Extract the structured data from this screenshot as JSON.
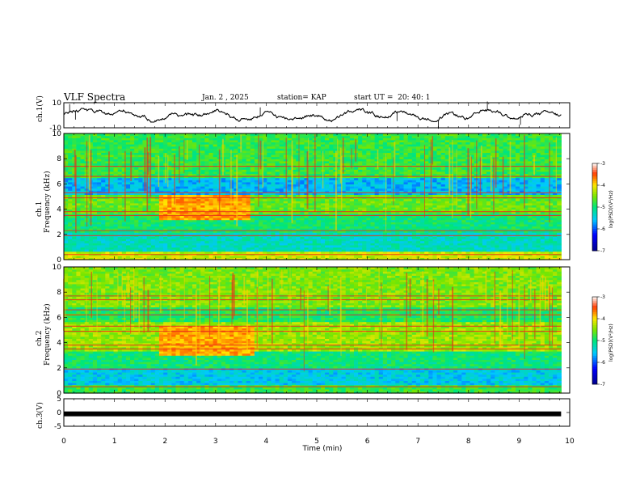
{
  "header": {
    "title": "VLF Spectra",
    "date": "Jan. 2 , 2025",
    "station": "station= KAP",
    "start": "start UT =  20: 40: 1"
  },
  "chart_data": [
    {
      "type": "line",
      "name": "ch1-time-series",
      "ylabel": "ch.1(V)",
      "ylim": [
        -10,
        10
      ],
      "ytick_labels": [
        "10",
        "-10"
      ],
      "x_range_min": [
        0,
        9.83
      ],
      "description_values": "broadband voltage trace fluctuating between about -5 and 5 V"
    },
    {
      "type": "heatmap",
      "name": "ch1-spectrogram",
      "ylabel": "Frequency (kHz)",
      "channel_label": "ch.1",
      "ylim": [
        0,
        10
      ],
      "ytick_labels": [
        "0",
        "2",
        "4",
        "6",
        "8",
        "10"
      ],
      "colorbar": {
        "label": "log(PSD)(V²/Hz)",
        "range": [
          -7,
          -3
        ],
        "tick_labels": [
          "-3",
          "-4",
          "-5",
          "-6",
          "-7"
        ]
      },
      "bands_khz": [
        {
          "from": 0,
          "to": 0.6,
          "level": -4.2
        },
        {
          "from": 0.6,
          "to": 2.2,
          "level": -5.3
        },
        {
          "from": 2.2,
          "to": 3.6,
          "level": -5.0
        },
        {
          "from": 3.6,
          "to": 5.2,
          "level": -4.6
        },
        {
          "from": 5.2,
          "to": 6.5,
          "level": -5.6
        },
        {
          "from": 6.5,
          "to": 10,
          "level": -4.8
        }
      ],
      "lines_khz": [
        0.4,
        1.9,
        2.3,
        3.5,
        3.8,
        4.9,
        5.3,
        6.6,
        7.4
      ],
      "enhancement": {
        "t_from_min": 1.9,
        "t_to_min": 3.7,
        "f_from_khz": 3.2,
        "f_to_khz": 5.2,
        "level": -3.8
      }
    },
    {
      "type": "heatmap",
      "name": "ch2-spectrogram",
      "ylabel": "Frequency (kHz)",
      "channel_label": "ch.2",
      "ylim": [
        0,
        10
      ],
      "ytick_labels": [
        "0",
        "2",
        "4",
        "6",
        "8",
        "10"
      ],
      "colorbar": {
        "label": "log(PSD)(V²/Hz)",
        "range": [
          -7,
          -3
        ],
        "tick_labels": [
          "-3",
          "-4",
          "-5",
          "-6",
          "-7"
        ]
      },
      "bands_khz": [
        {
          "from": 0,
          "to": 0.6,
          "level": -4.8
        },
        {
          "from": 0.6,
          "to": 2.0,
          "level": -5.5
        },
        {
          "from": 2.0,
          "to": 3.4,
          "level": -5.0
        },
        {
          "from": 3.4,
          "to": 5.6,
          "level": -4.4
        },
        {
          "from": 5.6,
          "to": 6.8,
          "level": -4.9
        },
        {
          "from": 6.8,
          "to": 10,
          "level": -4.5
        }
      ],
      "lines_khz": [
        0.5,
        1.9,
        3.5,
        3.8,
        4.9,
        5.3,
        6.2,
        6.6,
        7.4,
        7.7
      ],
      "enhancement": {
        "t_from_min": 1.9,
        "t_to_min": 3.8,
        "f_from_khz": 3.0,
        "f_to_khz": 5.4,
        "level": -3.8
      }
    },
    {
      "type": "line",
      "name": "ch3-time-series",
      "ylabel": "ch.3(V)",
      "ylim": [
        -5,
        5
      ],
      "ytick_labels": [
        "5",
        "0",
        "-5"
      ],
      "constant_value": -0.5,
      "x_range_min": [
        0,
        9.83
      ]
    }
  ],
  "xaxis": {
    "label": "Time (min)",
    "range": [
      0,
      10
    ],
    "tick_labels": [
      "0",
      "1",
      "2",
      "3",
      "4",
      "5",
      "6",
      "7",
      "8",
      "9",
      "10"
    ]
  }
}
